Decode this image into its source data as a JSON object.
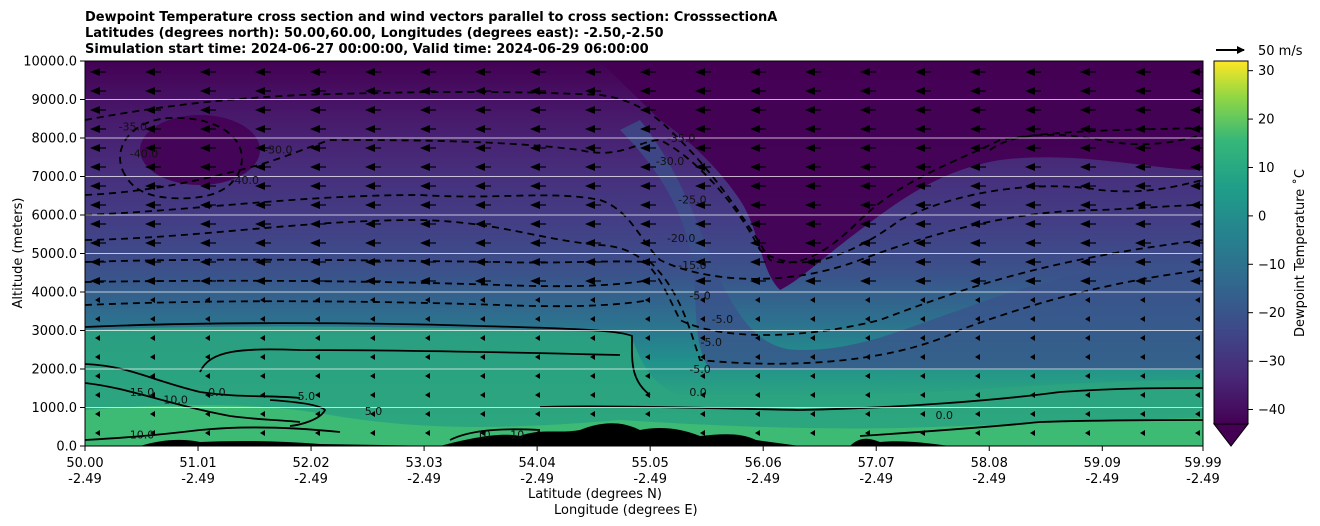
{
  "chart_data": {
    "type": "filled-contour cross section with wind vectors",
    "title_lines": [
      "Dewpoint Temperature cross section and wind vectors parallel to cross section: CrosssectionA",
      "Latitudes (degrees north): 50.00,60.00, Longitudes (degrees east): -2.50,-2.50",
      "Simulation start time: 2024-06-27 00:00:00, Valid time: 2024-06-29 06:00:00"
    ],
    "ylabel": "Altitude (meters)",
    "xlabel_lines": [
      "Latitude (degrees N)",
      "Longitude (degrees E)"
    ],
    "ylim": [
      0,
      10000
    ],
    "xlim": [
      50.0,
      59.99
    ],
    "y_ticks": [
      "0.0",
      "1000.0",
      "2000.0",
      "3000.0",
      "4000.0",
      "5000.0",
      "6000.0",
      "7000.0",
      "8000.0",
      "9000.0",
      "10000.0"
    ],
    "x_ticks": [
      {
        "lat": "50.00",
        "lon": "-2.49"
      },
      {
        "lat": "51.01",
        "lon": "-2.49"
      },
      {
        "lat": "52.02",
        "lon": "-2.49"
      },
      {
        "lat": "53.03",
        "lon": "-2.49"
      },
      {
        "lat": "54.04",
        "lon": "-2.49"
      },
      {
        "lat": "55.05",
        "lon": "-2.49"
      },
      {
        "lat": "56.06",
        "lon": "-2.49"
      },
      {
        "lat": "57.07",
        "lon": "-2.49"
      },
      {
        "lat": "58.08",
        "lon": "-2.49"
      },
      {
        "lat": "59.09",
        "lon": "-2.49"
      },
      {
        "lat": "59.99",
        "lon": "-2.49"
      }
    ],
    "horizontal_grid": true,
    "colorbar": {
      "label": "Dewpoint Temperature ˚C",
      "ticks": [
        "30",
        "20",
        "10",
        "0",
        "−10",
        "−20",
        "−30",
        "−40"
      ],
      "min": -43,
      "max": 32,
      "extend": "min",
      "colormap": "viridis"
    },
    "wind_key": {
      "label": "50 m/s"
    },
    "contour_labels": [
      {
        "text": "-35.0",
        "lat": 50.3,
        "alt": 8200
      },
      {
        "text": "-40.0",
        "lat": 50.4,
        "alt": 7500
      },
      {
        "text": "-30.0",
        "lat": 51.6,
        "alt": 7600
      },
      {
        "text": "-40.0",
        "lat": 51.3,
        "alt": 6800
      },
      {
        "text": "-35.0",
        "lat": 55.2,
        "alt": 7900
      },
      {
        "text": "-30.0",
        "lat": 55.1,
        "alt": 7300
      },
      {
        "text": "-25.0",
        "lat": 55.3,
        "alt": 6300
      },
      {
        "text": "-20.0",
        "lat": 55.2,
        "alt": 5300
      },
      {
        "text": "-15.0",
        "lat": 55.3,
        "alt": 4600
      },
      {
        "text": "-5.0",
        "lat": 55.4,
        "alt": 3800
      },
      {
        "text": "-5.0",
        "lat": 55.6,
        "alt": 3200
      },
      {
        "text": "-5.0",
        "lat": 55.5,
        "alt": 2600
      },
      {
        "text": "-5.0",
        "lat": 55.4,
        "alt": 1900
      },
      {
        "text": "0.0",
        "lat": 55.4,
        "alt": 1300
      },
      {
        "text": "0.0",
        "lat": 51.1,
        "alt": 1300
      },
      {
        "text": "5.0",
        "lat": 51.9,
        "alt": 1200
      },
      {
        "text": "5.0",
        "lat": 52.5,
        "alt": 800
      },
      {
        "text": "10.0",
        "lat": 50.7,
        "alt": 1100
      },
      {
        "text": "15.0",
        "lat": 50.4,
        "alt": 1300
      },
      {
        "text": "10.0",
        "lat": 50.4,
        "alt": 200
      },
      {
        "text": "10",
        "lat": 53.5,
        "alt": 200
      },
      {
        "text": "10",
        "lat": 53.8,
        "alt": 200
      },
      {
        "text": "0.0",
        "lat": 57.6,
        "alt": 700
      }
    ]
  }
}
